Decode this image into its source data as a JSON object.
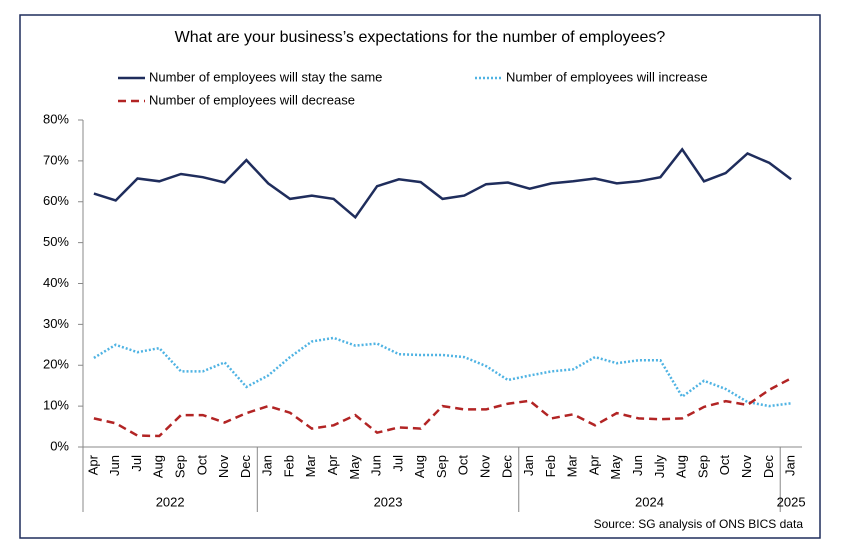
{
  "chart_data": {
    "type": "line",
    "title": "What are your business’s expectations for the number of employees?",
    "source": "Source: SG analysis of ONS BICS data",
    "categories": [
      "Apr",
      "Jun",
      "Jul",
      "Aug",
      "Sep",
      "Oct",
      "Nov",
      "Dec",
      "Jan",
      "Feb",
      "Mar",
      "Apr",
      "May",
      "Jun",
      "Jul",
      "Aug",
      "Sep",
      "Oct",
      "Nov",
      "Dec",
      "Jan",
      "Feb",
      "Mar",
      "Apr",
      "May",
      "Jun",
      "July",
      "Aug",
      "Sep",
      "Oct",
      "Nov",
      "Dec",
      "Jan"
    ],
    "x_groups": [
      {
        "label": "2022",
        "span": 8
      },
      {
        "label": "2023",
        "span": 12
      },
      {
        "label": "2024",
        "span": 12
      },
      {
        "label": "2025",
        "span": 1
      }
    ],
    "ylim": [
      0,
      80
    ],
    "yticks": [
      {
        "value": 0,
        "label": "0%"
      },
      {
        "value": 10,
        "label": "10%"
      },
      {
        "value": 20,
        "label": "20%"
      },
      {
        "value": 30,
        "label": "30%"
      },
      {
        "value": 40,
        "label": "40%"
      },
      {
        "value": 50,
        "label": "50%"
      },
      {
        "value": 60,
        "label": "60%"
      },
      {
        "value": 70,
        "label": "70%"
      },
      {
        "value": 80,
        "label": "80%"
      }
    ],
    "series": [
      {
        "name": "Number of employees will stay the same",
        "color": "#1f2d5c",
        "dash": "solid",
        "values": [
          62,
          60.3,
          65.7,
          65,
          66.8,
          66,
          64.7,
          70.2,
          64.5,
          60.7,
          61.5,
          60.7,
          56.2,
          63.8,
          65.5,
          64.8,
          60.7,
          61.5,
          64.3,
          64.7,
          63.2,
          64.5,
          65,
          65.7,
          64.5,
          65,
          66,
          72.8,
          65,
          67,
          71.8,
          69.5,
          65.5
        ]
      },
      {
        "name": "Number of employees will increase",
        "color": "#4fb3e3",
        "dash": "dotted",
        "values": [
          21.8,
          25,
          23.2,
          24.2,
          18.5,
          18.5,
          20.7,
          14.7,
          17.5,
          22,
          25.8,
          26.7,
          24.8,
          25.3,
          22.7,
          22.5,
          22.5,
          22,
          19.8,
          16.4,
          17.5,
          18.5,
          19,
          22,
          20.5,
          21.2,
          21.2,
          12.3,
          16.2,
          14.2,
          11,
          10,
          10.7
        ]
      },
      {
        "name": "Number of employees will decrease",
        "color": "#b22424",
        "dash": "dashed",
        "values": [
          7,
          5.8,
          2.8,
          2.7,
          7.8,
          7.8,
          6,
          8.3,
          10,
          8.4,
          4.5,
          5.3,
          7.8,
          3.5,
          4.8,
          4.5,
          10,
          9.2,
          9.2,
          10.6,
          11.3,
          7,
          8,
          5.3,
          8.3,
          7,
          6.8,
          7,
          9.8,
          11.2,
          10.3,
          14,
          16.8
        ]
      }
    ],
    "grid": false
  }
}
